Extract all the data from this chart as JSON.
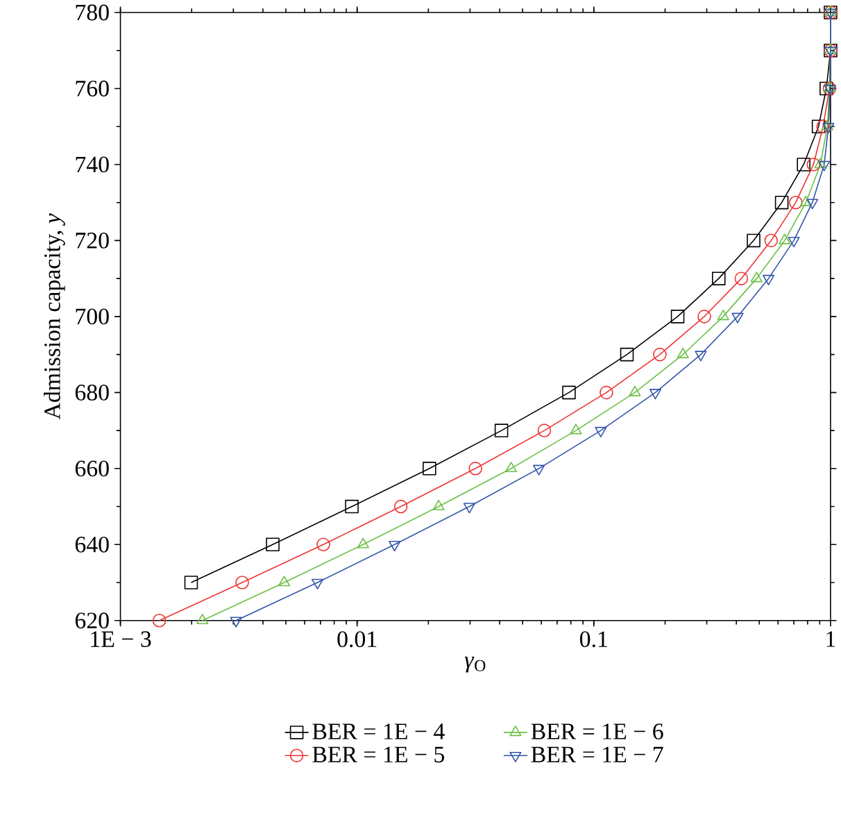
{
  "chart_data": {
    "type": "line",
    "xlabel": "*γ*$_{O}$",
    "ylabel": "Admission capacity, *y*",
    "log": "x",
    "xlim": [
      0.001,
      1
    ],
    "ylim": [
      620,
      780
    ],
    "xticks": [
      {
        "value": 0.001,
        "label": "1E − 3"
      },
      0.01,
      0.1,
      1
    ],
    "yticks": [
      620,
      640,
      660,
      680,
      700,
      720,
      740,
      760,
      780
    ],
    "grid": false,
    "legend": "bottom",
    "line_style": "solid",
    "series": [
      {
        "name": "BER = 1E − 4",
        "color": "#000000",
        "marker": "square",
        "x": [
          0.00199,
          0.0044,
          0.0095,
          0.0202,
          0.0407,
          0.0785,
          0.138,
          0.226,
          0.337,
          0.473,
          0.622,
          0.77,
          0.89,
          0.96,
          1,
          1
        ],
        "values": [
          630,
          640,
          650,
          660,
          670,
          680,
          690,
          700,
          710,
          720,
          730,
          740,
          750,
          760,
          770,
          780
        ]
      },
      {
        "name": "BER = 1E − 5",
        "color": "#ee3333",
        "marker": "circle",
        "x": [
          0.00146,
          0.00327,
          0.0072,
          0.0153,
          0.0316,
          0.0618,
          0.113,
          0.19,
          0.293,
          0.42,
          0.561,
          0.713,
          0.847,
          0.93,
          0.99,
          1,
          1
        ],
        "values": [
          620,
          630,
          640,
          650,
          660,
          670,
          680,
          690,
          700,
          710,
          720,
          730,
          740,
          750,
          760,
          770,
          780
        ]
      },
      {
        "name": "BER = 1E − 6",
        "color": "#6abf45",
        "marker": "triangle",
        "x": [
          0.00222,
          0.00492,
          0.0106,
          0.0221,
          0.0447,
          0.084,
          0.149,
          0.238,
          0.352,
          0.487,
          0.64,
          0.787,
          0.906,
          0.97,
          0.99,
          1,
          1
        ],
        "values": [
          620,
          630,
          640,
          650,
          660,
          670,
          680,
          690,
          700,
          710,
          720,
          730,
          740,
          750,
          760,
          770,
          780
        ]
      },
      {
        "name": "BER = 1E − 7",
        "color": "#3355aa",
        "marker": "triangle-down",
        "x": [
          0.00308,
          0.0068,
          0.0144,
          0.0298,
          0.0586,
          0.107,
          0.182,
          0.283,
          0.405,
          0.547,
          0.7,
          0.838,
          0.94,
          0.98,
          0.995,
          1,
          1
        ],
        "values": [
          620,
          630,
          640,
          650,
          660,
          670,
          680,
          690,
          700,
          710,
          720,
          730,
          740,
          750,
          760,
          770,
          780
        ]
      }
    ]
  }
}
